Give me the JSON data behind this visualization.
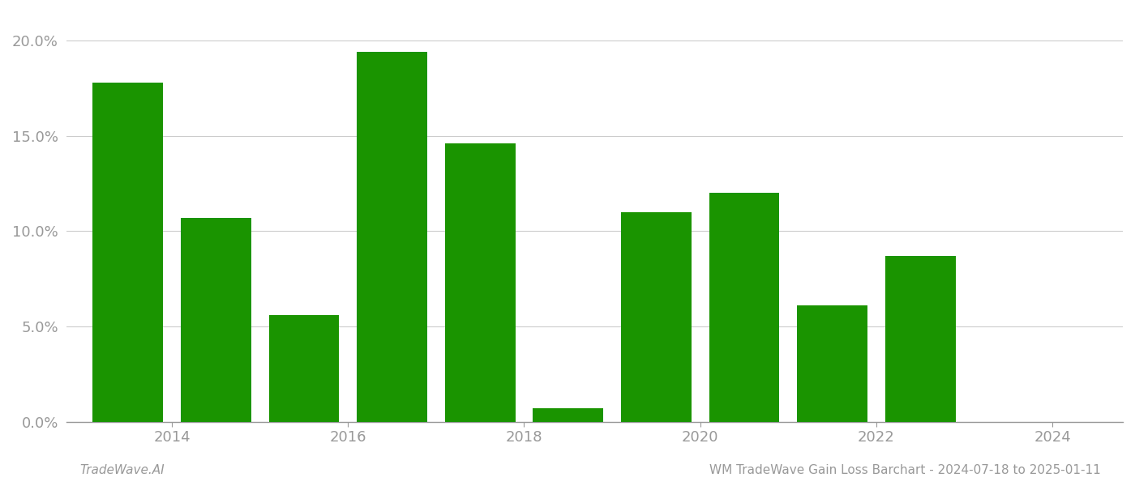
{
  "years": [
    2013.5,
    2014.5,
    2015.5,
    2016.5,
    2017.5,
    2018.5,
    2019.5,
    2020.5,
    2021.5,
    2022.5
  ],
  "values": [
    0.178,
    0.107,
    0.056,
    0.194,
    0.146,
    0.007,
    0.11,
    0.12,
    0.061,
    0.087
  ],
  "bar_color": "#1a9400",
  "background_color": "#ffffff",
  "footer_left": "TradeWave.AI",
  "footer_right": "WM TradeWave Gain Loss Barchart - 2024-07-18 to 2025-01-11",
  "ytick_labels": [
    "0.0%",
    "5.0%",
    "10.0%",
    "15.0%",
    "20.0%"
  ],
  "ytick_values": [
    0.0,
    0.05,
    0.1,
    0.15,
    0.2
  ],
  "ylim": [
    0,
    0.215
  ],
  "xtick_positions": [
    2014,
    2016,
    2018,
    2020,
    2022,
    2024
  ],
  "xlim": [
    2012.8,
    2024.8
  ],
  "grid_color": "#cccccc",
  "axis_color": "#999999",
  "tick_color": "#999999",
  "footer_fontsize": 11,
  "tick_fontsize": 13,
  "bar_width": 0.8
}
